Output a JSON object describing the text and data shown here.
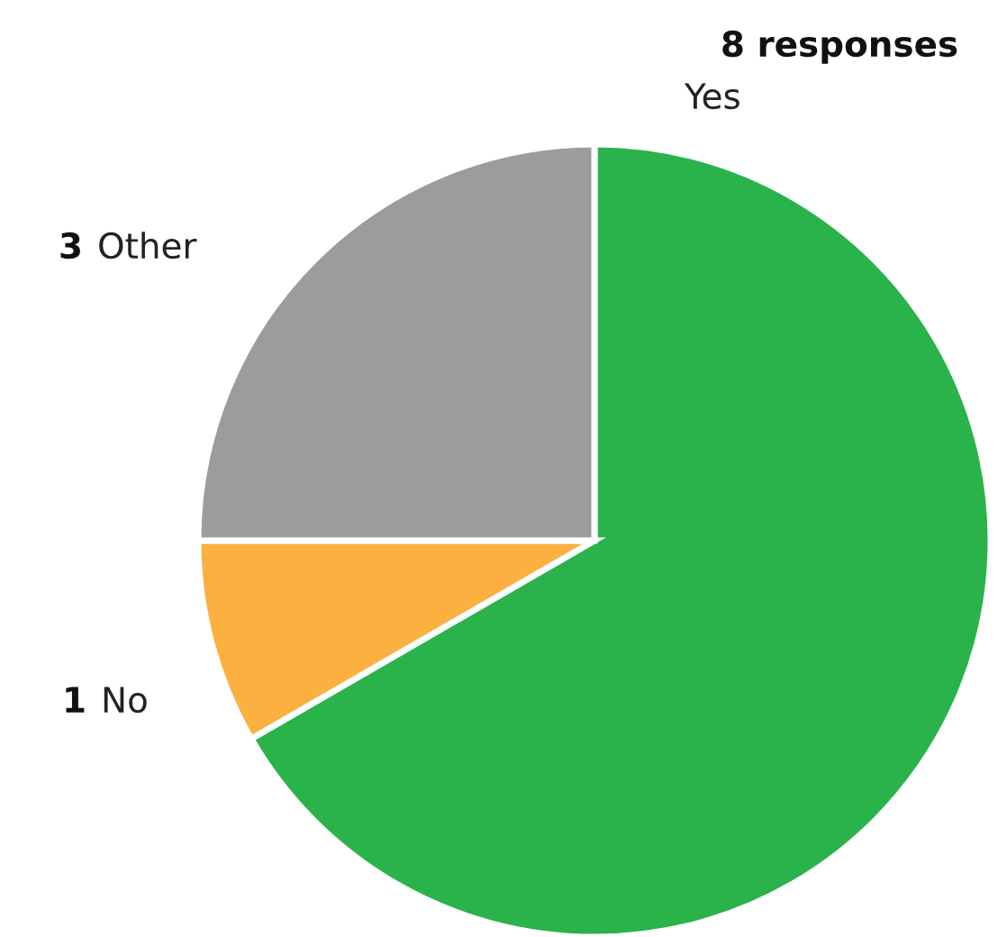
{
  "chart_data": {
    "type": "pie",
    "categories": [
      "Yes",
      "No",
      "Other"
    ],
    "values": [
      8,
      1,
      3
    ],
    "colors": [
      "#2ab34b",
      "#fbb040",
      "#9c9c9e"
    ],
    "value_labels": [
      "8 responses",
      "1",
      "3"
    ],
    "legend": false
  }
}
